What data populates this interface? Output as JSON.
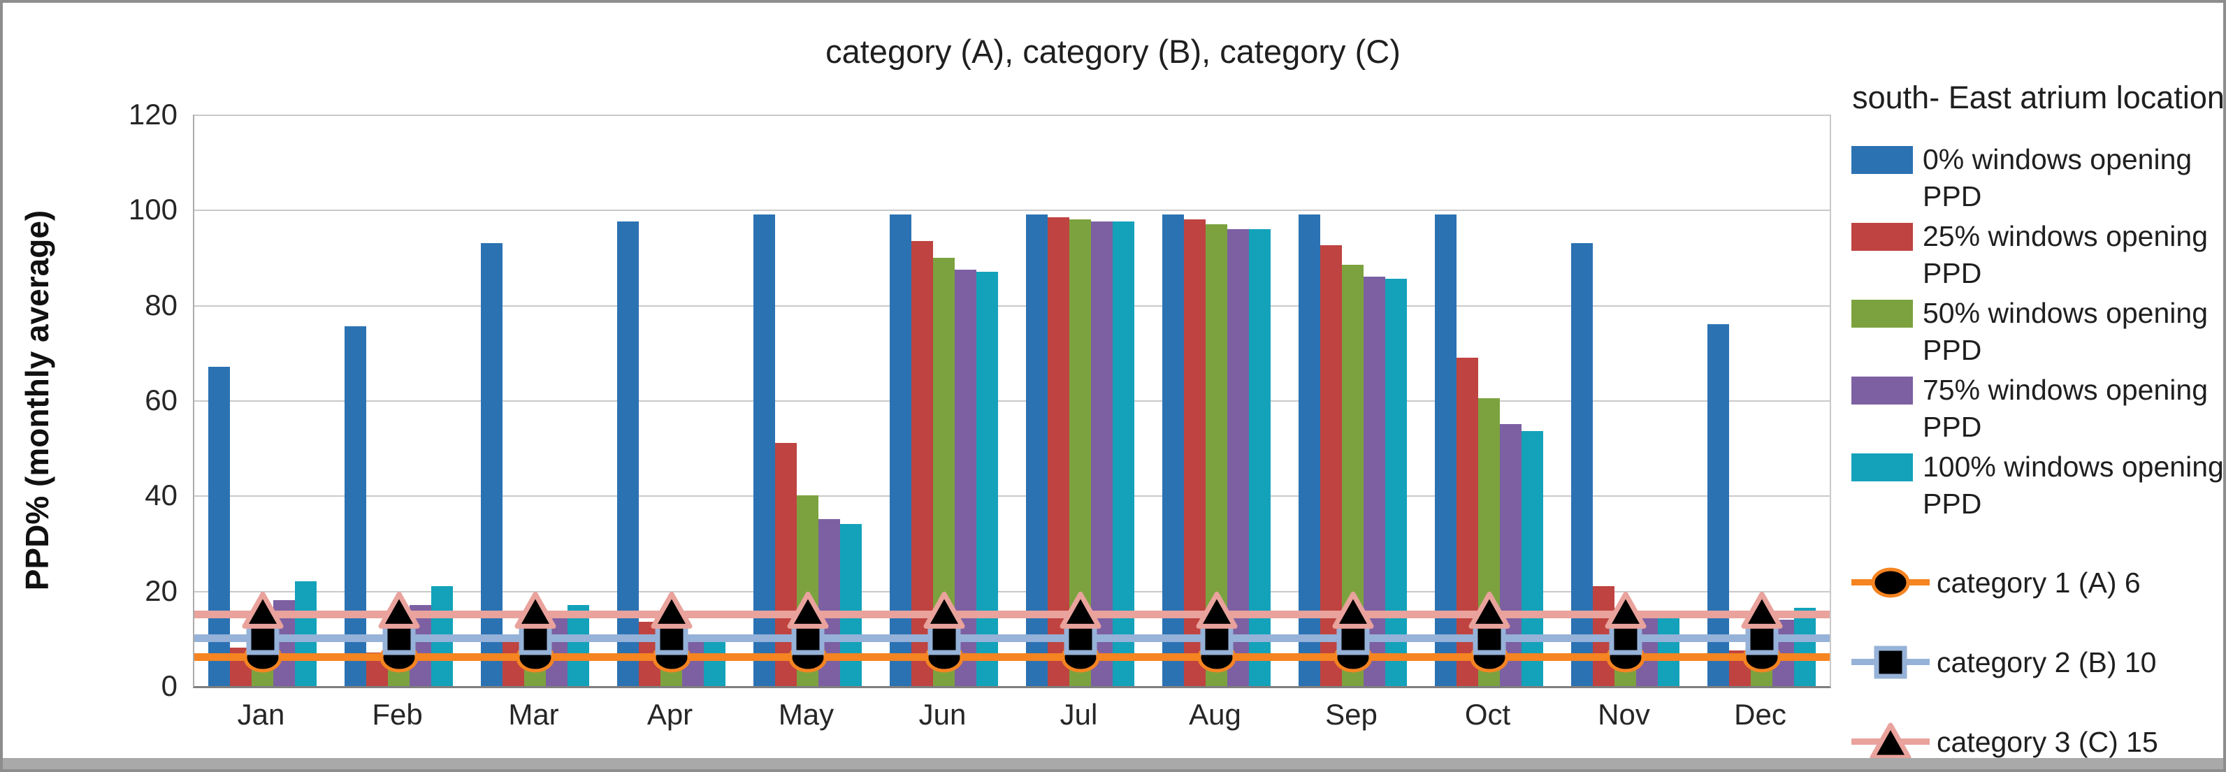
{
  "legend": {
    "title": "south- East atrium location",
    "items": [
      {
        "kind": "bar",
        "color": "#2B72B3",
        "label": "0% windows opening",
        "sublabel": "PPD"
      },
      {
        "kind": "bar",
        "color": "#BF4340",
        "label": "25% windows opening",
        "sublabel": "PPD"
      },
      {
        "kind": "bar",
        "color": "#7CA23F",
        "label": "50% windows opening",
        "sublabel": "PPD"
      },
      {
        "kind": "bar",
        "color": "#7C60A2",
        "label": "75% windows opening",
        "sublabel": "PPD"
      },
      {
        "kind": "bar",
        "color": "#13A2BA",
        "label": "100% windows opening",
        "sublabel": "PPD"
      },
      {
        "kind": "line",
        "marker": "circle",
        "color": "#F58421",
        "label": "category 1 (A) 6"
      },
      {
        "kind": "line",
        "marker": "square",
        "color": "#96B2D8",
        "label": "category 2 (B) 10"
      },
      {
        "kind": "line",
        "marker": "triangle",
        "color": "#E9A29C",
        "label": "category 3 (C) 15"
      }
    ]
  },
  "chart_data": {
    "type": "bar",
    "title": "category (A), category (B), category (C)",
    "xlabel": "",
    "ylabel": "PPD% (monthly average)",
    "ylim": [
      0,
      120
    ],
    "yticks": [
      0,
      20,
      40,
      60,
      80,
      100,
      120
    ],
    "grid": true,
    "legend_title": "south- East atrium location",
    "legend_position": "right",
    "categories": [
      "Jan",
      "Feb",
      "Mar",
      "Apr",
      "May",
      "Jun",
      "Jul",
      "Aug",
      "Sep",
      "Oct",
      "Nov",
      "Dec"
    ],
    "series": [
      {
        "name": "0% windows opening PPD",
        "type": "bar",
        "color": "#2B72B3",
        "values": [
          67,
          75.5,
          93,
          97.5,
          99,
          99,
          99,
          99,
          99,
          99,
          93,
          76
        ]
      },
      {
        "name": "25% windows opening PPD",
        "type": "bar",
        "color": "#BF4340",
        "values": [
          8,
          7,
          9.5,
          13.5,
          51,
          93.5,
          98.5,
          98,
          92.5,
          69,
          21,
          7.5
        ]
      },
      {
        "name": "50% windows opening PPD",
        "type": "bar",
        "color": "#7CA23F",
        "values": [
          10,
          10,
          10,
          10.5,
          40,
          90,
          98,
          97,
          88.5,
          60.5,
          16.5,
          8.5
        ]
      },
      {
        "name": "75% windows opening PPD",
        "type": "bar",
        "color": "#7C60A2",
        "values": [
          18,
          17,
          15,
          9.5,
          35,
          87.5,
          97.5,
          96,
          86,
          55,
          15,
          14
        ]
      },
      {
        "name": "100% windows opening PPD",
        "type": "bar",
        "color": "#13A2BA",
        "values": [
          22,
          21,
          17,
          9.5,
          34,
          87,
          97.5,
          96,
          85.5,
          53.5,
          15,
          16.5
        ]
      },
      {
        "name": "category 1 (A) 6",
        "type": "line",
        "marker": "circle",
        "marker_color": "#000000",
        "color": "#F58421",
        "values": [
          6,
          6,
          6,
          6,
          6,
          6,
          6,
          6,
          6,
          6,
          6,
          6
        ]
      },
      {
        "name": "category 2 (B) 10",
        "type": "line",
        "marker": "square",
        "marker_color": "#000000",
        "color": "#96B2D8",
        "values": [
          10,
          10,
          10,
          10,
          10,
          10,
          10,
          10,
          10,
          10,
          10,
          10
        ]
      },
      {
        "name": "category 3 (C) 15",
        "type": "line",
        "marker": "triangle",
        "marker_color": "#000000",
        "color": "#E9A29C",
        "values": [
          15,
          15,
          15,
          15,
          15,
          15,
          15,
          15,
          15,
          15,
          15,
          15
        ]
      }
    ]
  }
}
